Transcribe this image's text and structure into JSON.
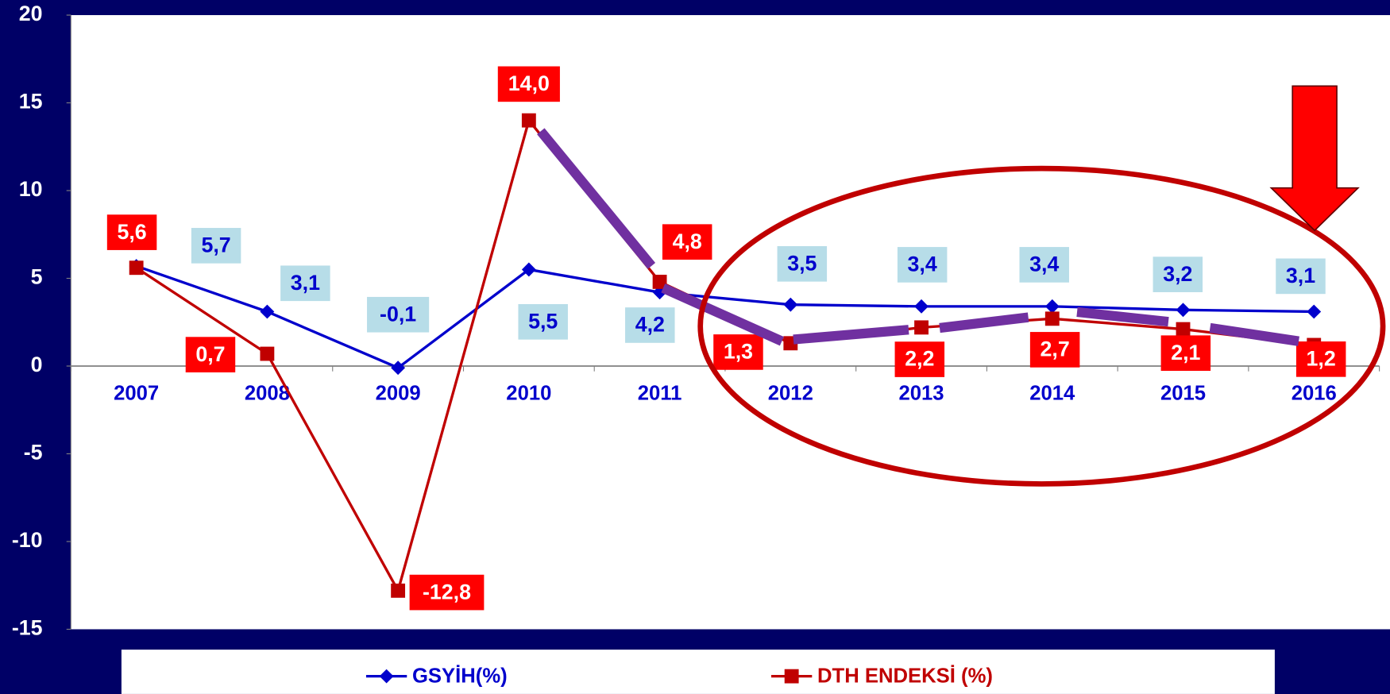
{
  "chart_data": {
    "type": "line",
    "categories": [
      "2007",
      "2008",
      "2009",
      "2010",
      "2011",
      "2012",
      "2013",
      "2014",
      "2015",
      "2016"
    ],
    "series": [
      {
        "name": "GSYİH(%)",
        "color": "#0000cc",
        "marker": "diamond",
        "values": [
          5.7,
          3.1,
          -0.1,
          5.5,
          4.2,
          3.5,
          3.4,
          3.4,
          3.2,
          3.1
        ],
        "value_labels": [
          "5,7",
          "3,1",
          "-0,1",
          "5,5",
          "4,2",
          "3,5",
          "3,4",
          "3,4",
          "3,2",
          "3,1"
        ]
      },
      {
        "name": "DTH ENDEKSİ (%)",
        "color": "#c00000",
        "marker": "square",
        "values": [
          5.6,
          0.7,
          -12.8,
          14.0,
          4.8,
          1.3,
          2.2,
          2.7,
          2.1,
          1.2
        ],
        "value_labels": [
          "5,6",
          "0,7",
          "-12,8",
          "14,0",
          "4,8",
          "1,3",
          "2,2",
          "2,7",
          "2,1",
          "1,2"
        ]
      }
    ],
    "ylim": [
      -15,
      20
    ],
    "yticks": [
      -15,
      -10,
      -5,
      0,
      5,
      10,
      15,
      20
    ],
    "legend": "bottom"
  }
}
